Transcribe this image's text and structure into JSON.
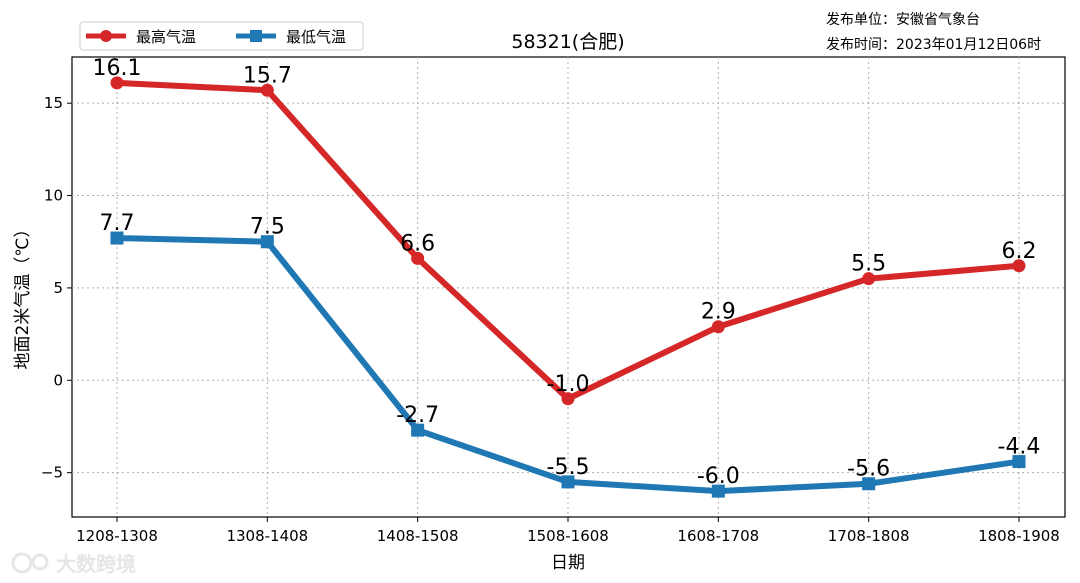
{
  "chart_data": {
    "type": "line",
    "title": "58321(合肥)",
    "xlabel": "日期",
    "ylabel": "地面2米气温（℃）",
    "categories": [
      "1208-1308",
      "1308-1408",
      "1408-1508",
      "1508-1608",
      "1608-1708",
      "1708-1808",
      "1808-1908"
    ],
    "series": [
      {
        "name": "最高气温",
        "color": "#d62728",
        "marker": "circle",
        "values": [
          16.1,
          15.7,
          6.6,
          -1.0,
          2.9,
          5.5,
          6.2
        ],
        "labels": [
          "16.1",
          "15.7",
          "6.6",
          "-1.0",
          "2.9",
          "5.5",
          "6.2"
        ]
      },
      {
        "name": "最低气温",
        "color": "#1f77b4",
        "marker": "square",
        "values": [
          7.7,
          7.5,
          -2.7,
          -5.5,
          -6.0,
          -5.6,
          -4.4
        ],
        "labels": [
          "7.7",
          "7.5",
          "-2.7",
          "-5.5",
          "-6.0",
          "-5.6",
          "-4.4"
        ]
      }
    ],
    "yticks": [
      -5,
      0,
      5,
      10,
      15
    ],
    "ylim": [
      -7.4,
      17.5
    ],
    "grid": true,
    "legend": "top-left"
  },
  "publisher": {
    "unit": "发布单位：安徽省气象台",
    "time": "发布时间：2023年01月12日06时"
  },
  "watermark": "大数跨境"
}
